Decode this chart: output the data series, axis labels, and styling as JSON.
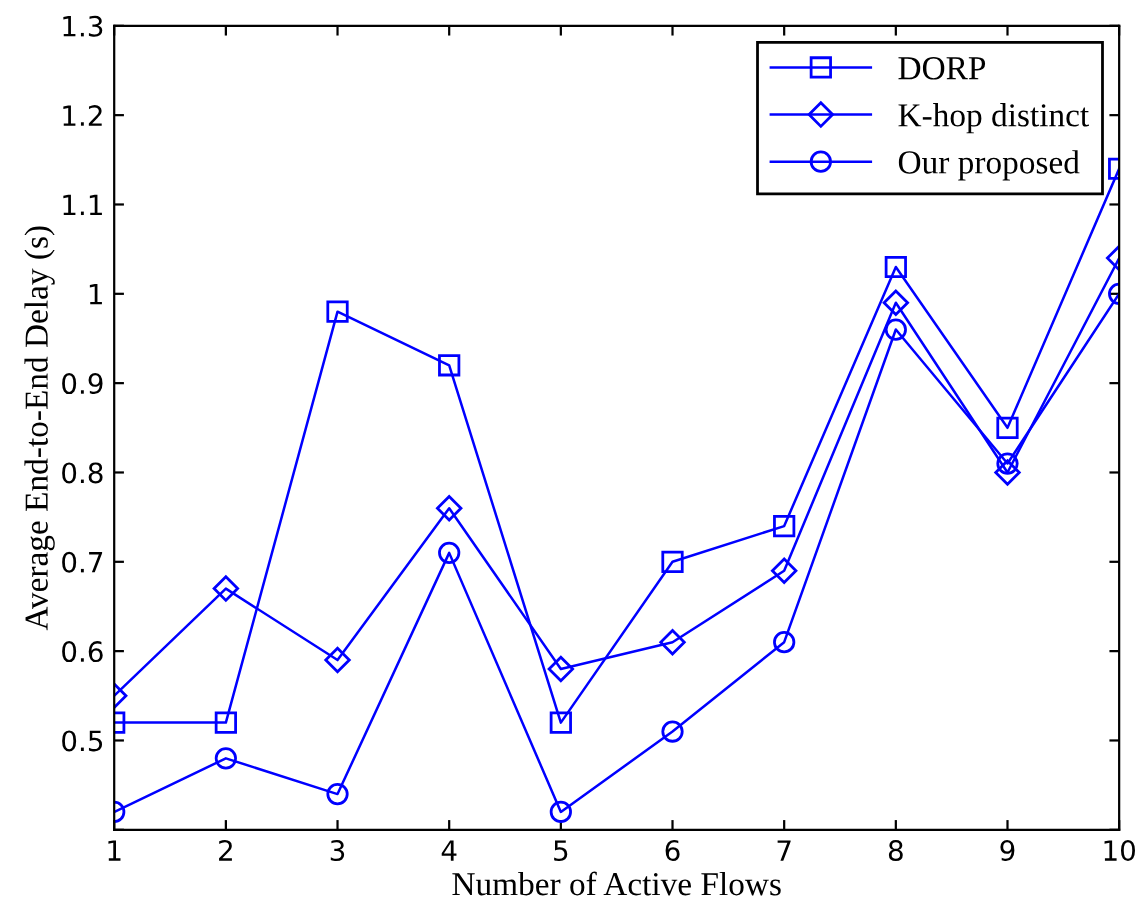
{
  "chart_data": {
    "type": "line",
    "xlabel": "Number of Active Flows",
    "ylabel": "Average End-to-End Delay (s)",
    "x": [
      1,
      2,
      3,
      4,
      5,
      6,
      7,
      8,
      9,
      10
    ],
    "xlim": [
      1,
      10
    ],
    "xticks": [
      1,
      2,
      3,
      4,
      5,
      6,
      7,
      8,
      9,
      10
    ],
    "ylim": [
      0.4,
      1.3
    ],
    "yticks": [
      {
        "value": 0.4,
        "label": null
      },
      0.5,
      0.6,
      0.7,
      0.8,
      0.9,
      {
        "value": 1.0,
        "label": "1"
      },
      1.1,
      1.2,
      1.3
    ],
    "grid": false,
    "legend": "top right",
    "line_style": "solid",
    "series": [
      {
        "name": "DORP",
        "color": "#0000ff",
        "marker": "square",
        "values": [
          0.52,
          0.52,
          0.98,
          0.92,
          0.52,
          0.7,
          0.74,
          1.03,
          0.85,
          1.14
        ]
      },
      {
        "name": "K-hop distinct",
        "color": "#0000ff",
        "marker": "diamond",
        "values": [
          0.55,
          0.67,
          0.59,
          0.76,
          0.58,
          0.61,
          0.69,
          0.99,
          0.8,
          1.04
        ]
      },
      {
        "name": "Our proposed",
        "color": "#0000ff",
        "marker": "circle",
        "values": [
          0.42,
          0.48,
          0.44,
          0.71,
          0.42,
          0.51,
          0.61,
          0.96,
          0.81,
          1.0
        ]
      }
    ]
  }
}
